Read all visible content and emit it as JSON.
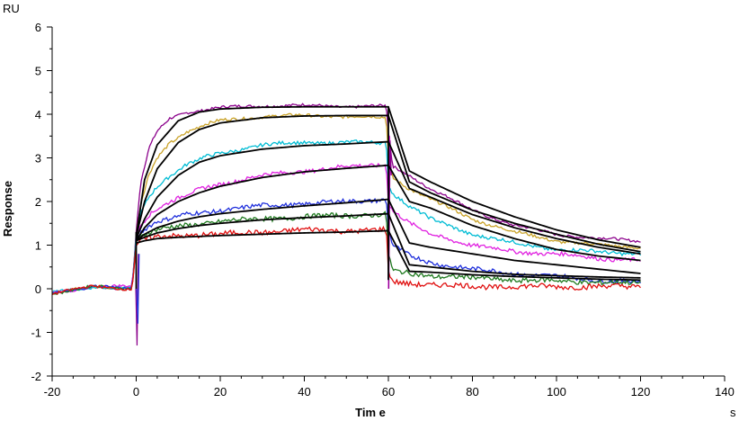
{
  "chart_data": {
    "type": "line",
    "title": "",
    "xlabel": "Tim e",
    "ylabel": "Response",
    "x_unit": "s",
    "y_unit": "RU",
    "xlim": [
      -20,
      140
    ],
    "ylim": [
      -2,
      6
    ],
    "x_ticks": [
      -20,
      0,
      20,
      40,
      60,
      80,
      100,
      120,
      140
    ],
    "y_ticks": [
      -2,
      -1,
      0,
      1,
      2,
      3,
      4,
      5,
      6
    ],
    "x_tick_labels": [
      "-20",
      "0",
      "20",
      "40",
      "60",
      "80",
      "100",
      "120",
      "140"
    ],
    "y_tick_labels": [
      "-2",
      "-1",
      "0",
      "1",
      "2",
      "3",
      "4",
      "5",
      "6"
    ],
    "grid": false,
    "legend": "none",
    "phases": {
      "association_start": 0,
      "dissociation_start": 60,
      "end": 120
    },
    "series": [
      {
        "color": "#8b008b",
        "plateau": 4.2,
        "x": [
          -20,
          -10,
          -1,
          0,
          1,
          3,
          5,
          8,
          12,
          16,
          20,
          30,
          40,
          50,
          59.5,
          60,
          61,
          65,
          70,
          80,
          90,
          100,
          110,
          120
        ],
        "values": [
          -0.1,
          0.05,
          0.0,
          1.3,
          2.4,
          3.2,
          3.6,
          3.9,
          4.05,
          4.1,
          4.15,
          4.2,
          4.2,
          4.18,
          4.18,
          3.6,
          2.8,
          2.6,
          2.3,
          1.8,
          1.45,
          1.25,
          1.15,
          1.1
        ]
      },
      {
        "color": "#c9a227",
        "plateau": 3.95,
        "x": [
          -20,
          -10,
          -1,
          0,
          1,
          3,
          5,
          8,
          12,
          16,
          20,
          30,
          40,
          50,
          59.5,
          60,
          61,
          65,
          70,
          80,
          90,
          100,
          110,
          120
        ],
        "values": [
          -0.1,
          0.05,
          0.0,
          1.2,
          1.9,
          2.6,
          3.0,
          3.35,
          3.6,
          3.75,
          3.85,
          3.95,
          3.97,
          3.95,
          3.92,
          3.0,
          2.55,
          2.3,
          2.05,
          1.6,
          1.3,
          1.1,
          1.0,
          0.95
        ]
      },
      {
        "color": "#00bcd4",
        "plateau": 3.35,
        "x": [
          -20,
          -10,
          -1,
          0,
          1,
          3,
          5,
          8,
          12,
          16,
          20,
          30,
          40,
          50,
          59.5,
          60,
          61,
          65,
          70,
          80,
          90,
          100,
          110,
          120
        ],
        "values": [
          -0.1,
          0.05,
          0.0,
          1.2,
          1.7,
          2.1,
          2.35,
          2.6,
          2.85,
          3.0,
          3.1,
          3.3,
          3.35,
          3.35,
          3.35,
          2.4,
          2.2,
          1.9,
          1.6,
          1.25,
          1.05,
          0.9,
          0.85,
          0.8
        ]
      },
      {
        "color": "#e020e0",
        "plateau": 2.85,
        "x": [
          -20,
          -10,
          -1,
          0,
          1,
          3,
          5,
          8,
          12,
          16,
          20,
          30,
          40,
          50,
          59.5,
          60,
          61,
          65,
          70,
          80,
          90,
          100,
          110,
          120
        ],
        "values": [
          -0.1,
          0.05,
          0.05,
          1.1,
          1.45,
          1.7,
          1.85,
          2.0,
          2.15,
          2.3,
          2.4,
          2.6,
          2.7,
          2.8,
          2.85,
          2.0,
          1.8,
          1.5,
          1.25,
          1.0,
          0.85,
          0.8,
          0.7,
          0.65
        ]
      },
      {
        "color": "#1f2fdc",
        "plateau": 2.05,
        "x": [
          -20,
          -10,
          -1,
          0,
          1,
          3,
          5,
          8,
          12,
          16,
          20,
          30,
          40,
          50,
          59.5,
          60,
          61,
          65,
          70,
          80,
          90,
          100,
          110,
          120
        ],
        "values": [
          -0.1,
          0.05,
          0.0,
          1.1,
          1.3,
          1.45,
          1.55,
          1.6,
          1.7,
          1.75,
          1.8,
          1.9,
          1.95,
          2.0,
          2.05,
          1.4,
          1.0,
          0.75,
          0.6,
          0.45,
          0.35,
          0.28,
          0.2,
          0.15
        ]
      },
      {
        "color": "#1f7a1f",
        "plateau": 1.7,
        "x": [
          -20,
          -10,
          -1,
          0,
          1,
          3,
          5,
          8,
          12,
          16,
          20,
          30,
          40,
          50,
          59.5,
          60,
          61,
          65,
          70,
          80,
          90,
          100,
          110,
          120
        ],
        "values": [
          -0.1,
          0.05,
          0.0,
          1.1,
          1.2,
          1.3,
          1.35,
          1.4,
          1.45,
          1.5,
          1.55,
          1.6,
          1.65,
          1.68,
          1.7,
          0.8,
          0.4,
          0.35,
          0.3,
          0.25,
          0.2,
          0.18,
          0.15,
          0.12
        ]
      },
      {
        "color": "#e01010",
        "plateau": 1.35,
        "x": [
          -20,
          -10,
          -1,
          0,
          1,
          3,
          5,
          8,
          12,
          16,
          20,
          30,
          40,
          50,
          59.5,
          60,
          61,
          65,
          70,
          80,
          90,
          100,
          110,
          120
        ],
        "values": [
          -0.1,
          0.05,
          0.0,
          1.0,
          1.1,
          1.15,
          1.18,
          1.2,
          1.22,
          1.25,
          1.25,
          1.3,
          1.35,
          1.33,
          1.35,
          0.4,
          0.15,
          0.12,
          0.1,
          0.05,
          0.05,
          0.05,
          0.05,
          0.05
        ]
      }
    ],
    "fits": [
      {
        "color": "#000000",
        "x": [
          0,
          2,
          5,
          10,
          15,
          20,
          30,
          40,
          50,
          60,
          65,
          70,
          80,
          90,
          100,
          110,
          120
        ],
        "values": [
          1.2,
          2.5,
          3.3,
          3.85,
          4.05,
          4.12,
          4.16,
          4.17,
          4.17,
          4.17,
          2.7,
          2.45,
          2.0,
          1.65,
          1.35,
          1.12,
          0.95
        ]
      },
      {
        "color": "#000000",
        "x": [
          0,
          2,
          5,
          10,
          15,
          20,
          30,
          40,
          50,
          60,
          65,
          70,
          80,
          90,
          100,
          110,
          120
        ],
        "values": [
          1.2,
          2.0,
          2.75,
          3.35,
          3.65,
          3.8,
          3.92,
          3.96,
          3.97,
          3.97,
          2.45,
          2.2,
          1.8,
          1.5,
          1.25,
          1.02,
          0.85
        ]
      },
      {
        "color": "#000000",
        "x": [
          0,
          2,
          5,
          10,
          15,
          20,
          30,
          40,
          50,
          60,
          65,
          70,
          80,
          90,
          100,
          110,
          120
        ],
        "values": [
          1.15,
          1.6,
          2.1,
          2.6,
          2.9,
          3.05,
          3.2,
          3.28,
          3.32,
          3.37,
          2.3,
          2.1,
          1.7,
          1.4,
          1.15,
          0.95,
          0.8
        ]
      },
      {
        "color": "#000000",
        "x": [
          0,
          2,
          5,
          10,
          15,
          20,
          30,
          40,
          50,
          60,
          65,
          70,
          80,
          90,
          100,
          110,
          120
        ],
        "values": [
          1.1,
          1.4,
          1.7,
          2.0,
          2.2,
          2.35,
          2.55,
          2.68,
          2.76,
          2.83,
          2.0,
          1.85,
          1.45,
          1.15,
          0.9,
          0.75,
          0.65
        ]
      },
      {
        "color": "#000000",
        "x": [
          0,
          2,
          5,
          10,
          15,
          20,
          30,
          40,
          50,
          60,
          65,
          70,
          80,
          90,
          100,
          110,
          120
        ],
        "values": [
          1.1,
          1.25,
          1.4,
          1.55,
          1.65,
          1.72,
          1.82,
          1.9,
          1.97,
          2.05,
          1.05,
          0.95,
          0.8,
          0.65,
          0.55,
          0.45,
          0.35
        ]
      },
      {
        "color": "#000000",
        "x": [
          0,
          2,
          5,
          10,
          15,
          20,
          30,
          40,
          50,
          60,
          65,
          70,
          80,
          90,
          100,
          110,
          120
        ],
        "values": [
          1.1,
          1.18,
          1.28,
          1.38,
          1.45,
          1.5,
          1.58,
          1.63,
          1.67,
          1.72,
          0.55,
          0.5,
          0.4,
          0.33,
          0.3,
          0.27,
          0.25
        ]
      },
      {
        "color": "#000000",
        "x": [
          0,
          2,
          5,
          10,
          15,
          20,
          30,
          40,
          50,
          60,
          65,
          70,
          80,
          90,
          100,
          110,
          120
        ],
        "values": [
          1.05,
          1.1,
          1.15,
          1.18,
          1.2,
          1.22,
          1.25,
          1.28,
          1.3,
          1.33,
          0.4,
          0.38,
          0.32,
          0.28,
          0.25,
          0.22,
          0.2
        ]
      }
    ]
  }
}
